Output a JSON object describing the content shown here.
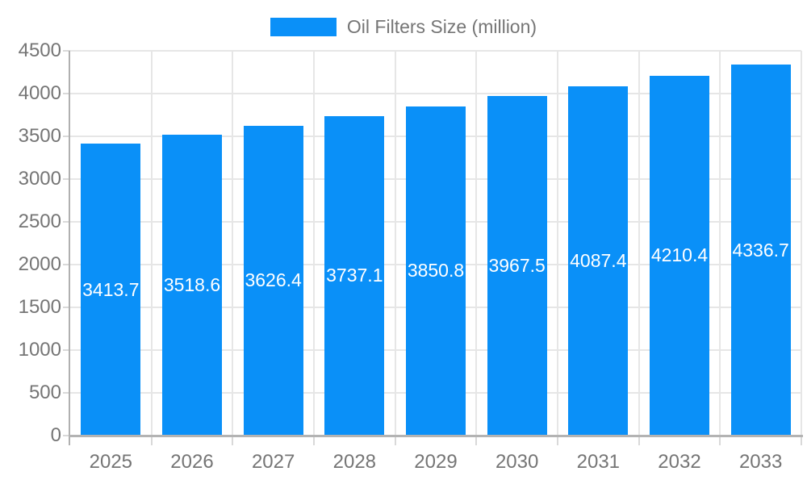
{
  "chart_data": {
    "type": "bar",
    "title": "Oil Filters Size (million)",
    "categories": [
      "2025",
      "2026",
      "2027",
      "2028",
      "2029",
      "2030",
      "2031",
      "2032",
      "2033"
    ],
    "series": [
      {
        "name": "Oil Filters Size (million)",
        "values": [
          3413.7,
          3518.6,
          3626.4,
          3737.1,
          3850.8,
          3967.5,
          4087.4,
          4210.4,
          4336.7
        ]
      }
    ],
    "value_labels": [
      "3413.7",
      "3518.6",
      "3626.4",
      "3737.1",
      "3850.8",
      "3967.5",
      "4087.4",
      "4210.4",
      "4336.7"
    ],
    "xlabel": "",
    "ylabel": "",
    "ylim": [
      0,
      4500
    ],
    "ytick_step": 500,
    "ytick_labels": [
      "0",
      "500",
      "1000",
      "1500",
      "2000",
      "2500",
      "3000",
      "3500",
      "4000",
      "4500"
    ],
    "grid": true,
    "legend_position": "top-center",
    "colors": {
      "bar": "#0a90f8",
      "grid": "#e6e6e6",
      "axis": "#b3b3b3",
      "tick": "#d9d9d9",
      "axis_text": "#757575",
      "value_text": "#ffffff",
      "background": "#ffffff"
    }
  }
}
